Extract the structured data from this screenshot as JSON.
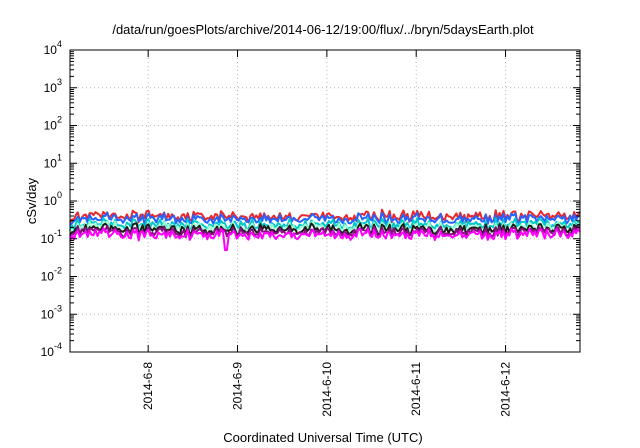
{
  "chart_data": {
    "type": "line",
    "title": "/data/run/goesPlots/archive/2014-06-12/19:00/flux/../bryn/5daysEarth.plot",
    "xlabel": "Coordinated Universal Time (UTC)",
    "ylabel": "cSv/day",
    "y_scale": "log",
    "ylim": [
      0.0001,
      10000
    ],
    "y_ticks": [
      {
        "value": 0.0001,
        "base": "10",
        "exp": "-4"
      },
      {
        "value": 0.001,
        "base": "10",
        "exp": "-3"
      },
      {
        "value": 0.01,
        "base": "10",
        "exp": "-2"
      },
      {
        "value": 0.1,
        "base": "10",
        "exp": "-1"
      },
      {
        "value": 1,
        "base": "10",
        "exp": "0"
      },
      {
        "value": 10,
        "base": "10",
        "exp": "1"
      },
      {
        "value": 100,
        "base": "10",
        "exp": "2"
      },
      {
        "value": 1000,
        "base": "10",
        "exp": "3"
      },
      {
        "value": 10000,
        "base": "10",
        "exp": "4"
      }
    ],
    "xlim": [
      "2014-06-07 03:00",
      "2014-06-12 20:00"
    ],
    "x_ticks": [
      {
        "value": "2014-06-08 00:00",
        "label": "2014-6-8"
      },
      {
        "value": "2014-06-09 00:00",
        "label": "2014-6-9"
      },
      {
        "value": "2014-06-10 00:00",
        "label": "2014-6-10"
      },
      {
        "value": "2014-06-11 00:00",
        "label": "2014-6-11"
      },
      {
        "value": "2014-06-12 00:00",
        "label": "2014-6-12"
      }
    ],
    "grid": true,
    "series": [
      {
        "color": "#e8272c",
        "level": 0.4
      },
      {
        "color": "#2563ff",
        "level": 0.34
      },
      {
        "color": "#00c8c8",
        "level": 0.24
      },
      {
        "color": "#a0ffd0",
        "level": 0.2
      },
      {
        "color": "#1a1a1a",
        "level": 0.18
      },
      {
        "color": "#8a0f80",
        "level": 0.155
      },
      {
        "color": "#ff00ff",
        "level": 0.13
      }
    ],
    "notable_dip": {
      "x": "2014-06-08 21:00",
      "y": 0.05
    }
  }
}
